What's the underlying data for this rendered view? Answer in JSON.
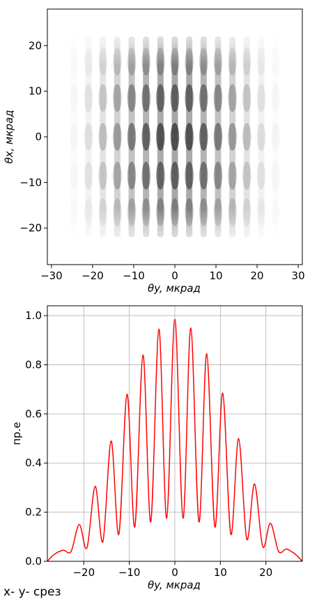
{
  "chart_data": [
    {
      "type": "heatmap",
      "xlabel": "θy, мкрад",
      "ylabel": "θx, мкрад",
      "xlim": [
        -31,
        31
      ],
      "ylim": [
        -28,
        28
      ],
      "xticks": [
        -30,
        -20,
        -10,
        0,
        10,
        20,
        30
      ],
      "yticks": [
        -20,
        -10,
        0,
        10,
        20
      ],
      "colormap": "gray_r"
    },
    {
      "type": "line",
      "xlabel": "θy, мкрад",
      "ylabel": "пр.е",
      "xlim": [
        -28,
        28
      ],
      "ylim": [
        0,
        1.04
      ],
      "xticks": [
        -20,
        -10,
        0,
        10,
        20
      ],
      "yticks": [
        0.0,
        0.2,
        0.4,
        0.6,
        0.8,
        1.0
      ],
      "grid": true,
      "series": [
        {
          "color": "#ff0000",
          "peaks_x": [
            -24.5,
            -21.0,
            -17.5,
            -14.0,
            -10.5,
            -7.0,
            -3.5,
            0.0,
            3.5,
            7.0,
            10.5,
            14.0,
            17.5,
            21.0,
            24.5
          ],
          "peaks_y": [
            0.045,
            0.15,
            0.305,
            0.49,
            0.68,
            0.84,
            0.945,
            0.985,
            0.95,
            0.845,
            0.685,
            0.5,
            0.315,
            0.155,
            0.05
          ],
          "minima_x": [
            -22.8,
            -19.3,
            -15.8,
            -12.3,
            -8.8,
            -5.3,
            -1.8,
            1.8,
            5.3,
            8.8,
            12.3,
            15.8,
            19.3,
            22.8
          ],
          "minima_y": [
            0.04,
            0.055,
            0.08,
            0.11,
            0.14,
            0.16,
            0.175,
            0.175,
            0.16,
            0.14,
            0.11,
            0.09,
            0.06,
            0.04
          ],
          "edges_x": [
            -28,
            -26.5,
            26.5,
            28
          ],
          "edges_y": [
            0.0,
            0.028,
            0.028,
            0.0
          ]
        }
      ]
    }
  ],
  "caption": "x- y- срез"
}
